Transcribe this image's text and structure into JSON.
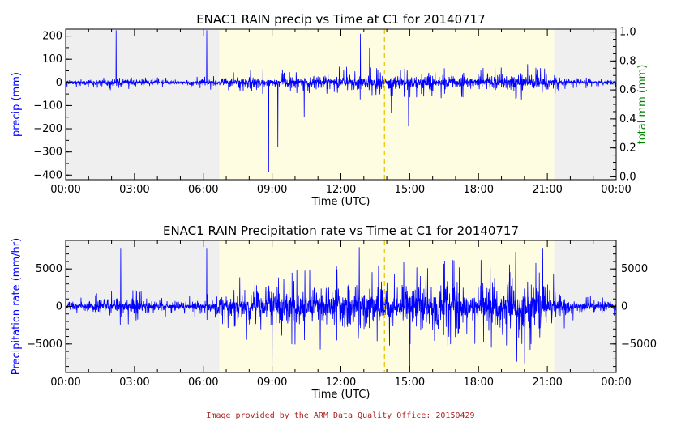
{
  "colors": {
    "series": "#0000ff",
    "axis_y_left": "#0000ff",
    "axis_y_right": "#008000",
    "night_shade": "#efefef",
    "day_shade": "#fffde1",
    "solar_noon_line": "#e6c200",
    "credit_text": "#aa2222"
  },
  "footer": {
    "credit": "Image provided by the ARM Data Quality Office: 20150429"
  },
  "chart_data": [
    {
      "type": "line",
      "title": "ENAC1 RAIN precip vs Time at C1 for 20140717",
      "xlabel": "Time (UTC)",
      "ylabel": "precip (mm)",
      "y2label": "total mm (mm)",
      "x_range_hours": [
        0,
        24
      ],
      "x_ticks": [
        "00:00",
        "03:00",
        "06:00",
        "09:00",
        "12:00",
        "15:00",
        "18:00",
        "21:00",
        "00:00"
      ],
      "ylim": [
        -420,
        230
      ],
      "y_ticks": [
        "200",
        "100",
        "0",
        "−100",
        "−200",
        "−300",
        "−400"
      ],
      "y2lim": [
        -0.02,
        1.02
      ],
      "y2_ticks": [
        "1.0",
        "0.8",
        "0.6",
        "0.4",
        "0.2",
        "0.0"
      ],
      "shading": {
        "night_before_until_hour": 6.7,
        "day_from_hour": 6.7,
        "day_until_hour": 21.3,
        "night_after_from_hour": 21.3
      },
      "solar_noon_hour": 13.9,
      "envelope": {
        "hours": [
          0,
          1,
          2,
          3,
          4,
          5,
          6,
          7,
          8,
          9,
          10,
          11,
          12,
          13,
          14,
          15,
          16,
          17,
          18,
          19,
          20,
          21,
          22,
          23,
          24
        ],
        "max_abs": [
          22,
          25,
          35,
          30,
          22,
          20,
          28,
          40,
          55,
          60,
          55,
          60,
          70,
          80,
          60,
          75,
          70,
          65,
          70,
          75,
          80,
          70,
          30,
          25,
          22
        ]
      },
      "spikes": [
        {
          "hour": 2.2,
          "value": 225
        },
        {
          "hour": 6.15,
          "value": 225
        },
        {
          "hour": 8.85,
          "value": -385
        },
        {
          "hour": 9.25,
          "value": -280
        },
        {
          "hour": 12.85,
          "value": 210
        },
        {
          "hour": 14.2,
          "value": -130
        },
        {
          "hour": 14.95,
          "value": -190
        },
        {
          "hour": 10.4,
          "value": -150
        },
        {
          "hour": 13.25,
          "value": 150
        }
      ]
    },
    {
      "type": "line",
      "title": "ENAC1 RAIN Precipitation rate vs Time at C1 for 20140717",
      "xlabel": "Time (UTC)",
      "ylabel": "Precipitation rate (mm/hr)",
      "x_range_hours": [
        0,
        24
      ],
      "x_ticks": [
        "00:00",
        "03:00",
        "06:00",
        "09:00",
        "12:00",
        "15:00",
        "18:00",
        "21:00",
        "00:00"
      ],
      "ylim": [
        -8800,
        8800
      ],
      "y_ticks": [
        "5000",
        "0",
        "−5000"
      ],
      "y_tick_values": [
        5000,
        0,
        -5000
      ],
      "shading": {
        "night_before_until_hour": 6.7,
        "day_from_hour": 6.7,
        "day_until_hour": 21.3,
        "night_after_from_hour": 21.3
      },
      "solar_noon_hour": 13.9,
      "envelope": {
        "hours": [
          0,
          1,
          2,
          3,
          4,
          5,
          6,
          7,
          8,
          9,
          10,
          11,
          12,
          13,
          14,
          15,
          16,
          17,
          18,
          19,
          20,
          21,
          22,
          23,
          24
        ],
        "max_abs": [
          1300,
          1500,
          2500,
          2400,
          1500,
          1300,
          1800,
          3000,
          5000,
          5800,
          5200,
          5800,
          6500,
          7000,
          5000,
          7500,
          7000,
          6500,
          7000,
          7500,
          7800,
          6000,
          2000,
          1500,
          1300
        ]
      },
      "spikes": [
        {
          "hour": 2.4,
          "value": 7800
        },
        {
          "hour": 6.15,
          "value": 7800
        },
        {
          "hour": 12.8,
          "value": 7900
        },
        {
          "hour": 15.0,
          "value": -8000
        },
        {
          "hour": 9.0,
          "value": -7900
        },
        {
          "hour": 20.8,
          "value": 7800
        }
      ]
    }
  ]
}
